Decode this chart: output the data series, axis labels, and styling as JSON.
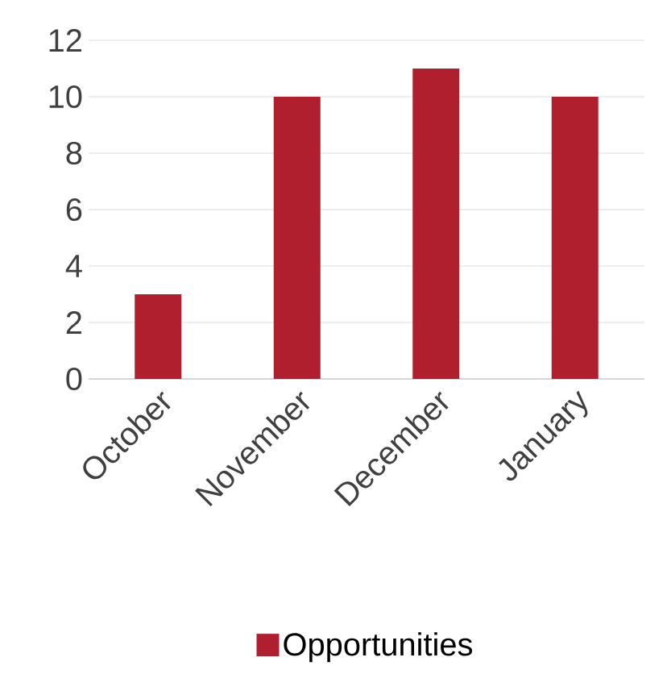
{
  "chart_data": {
    "type": "bar",
    "categories": [
      "October",
      "November",
      "December",
      "January"
    ],
    "series": [
      {
        "name": "Opportunities",
        "color": "#b01f2e",
        "values": [
          3,
          10,
          11,
          10
        ]
      }
    ],
    "ylim": [
      0,
      12
    ],
    "yticks": [
      0,
      2,
      4,
      6,
      8,
      10,
      12
    ],
    "grid": "y",
    "legend": "bottom"
  }
}
